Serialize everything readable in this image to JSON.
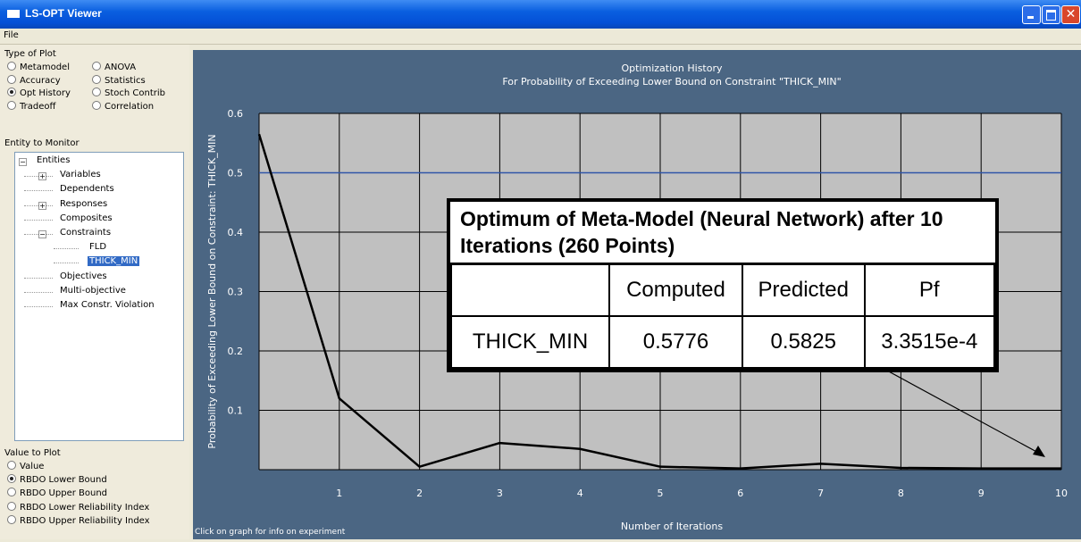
{
  "window": {
    "title": "LS-OPT Viewer"
  },
  "menu": [
    "File"
  ],
  "type_of_plot": {
    "label": "Type of Plot",
    "options": [
      "Metamodel",
      "ANOVA",
      "Accuracy",
      "Statistics",
      "Opt History",
      "Stoch Contrib",
      "Tradeoff",
      "Correlation"
    ],
    "selected": 4
  },
  "entity_to_monitor": {
    "label": "Entity to Monitor",
    "selected": 7,
    "items": [
      {
        "label": "Entities",
        "depth": 0,
        "expander": "minus"
      },
      {
        "label": "Variables",
        "depth": 1,
        "expander": "plus"
      },
      {
        "label": "Dependents",
        "depth": 1
      },
      {
        "label": "Responses",
        "depth": 1,
        "expander": "plus"
      },
      {
        "label": "Composites",
        "depth": 1
      },
      {
        "label": "Constraints",
        "depth": 1,
        "expander": "minus"
      },
      {
        "label": "FLD",
        "depth": 2
      },
      {
        "label": "THICK_MIN",
        "depth": 2
      },
      {
        "label": "Objectives",
        "depth": 1
      },
      {
        "label": "Multi-objective",
        "depth": 1
      },
      {
        "label": "Max Constr. Violation",
        "depth": 1
      }
    ]
  },
  "value_to_plot": {
    "label": "Value to Plot",
    "options": [
      "Value",
      "RBDO Lower Bound",
      "RBDO Upper Bound",
      "RBDO Lower Reliability Index",
      "RBDO Upper Reliability Index"
    ],
    "selected": 1
  },
  "status": "Click on graph for info on experiment",
  "chart_data": {
    "type": "line",
    "title": "Optimization History",
    "subtitle": "For Probability of Exceeding Lower Bound on Constraint \"THICK_MIN\"",
    "x_label": "Number of Iterations",
    "y_label": "Probability of Exceeding Lower Bound on Constraint: THICK_MIN",
    "x": [
      0,
      1,
      2,
      3,
      4,
      5,
      6,
      7,
      8,
      9,
      10
    ],
    "values": [
      0.565,
      0.12,
      0.005,
      0.045,
      0.035,
      0.005,
      0.002,
      0.01,
      0.003,
      0.002,
      0.002
    ],
    "color": "#000000",
    "reference_line": {
      "value": 0.5,
      "color": "#2f55a8"
    },
    "xlim": [
      0,
      10
    ],
    "xticks": [
      1,
      2,
      3,
      4,
      5,
      6,
      7,
      8,
      9,
      10
    ],
    "ylim": [
      0,
      0.6
    ],
    "yticks": [
      0.1,
      0.2,
      0.3,
      0.4,
      0.5,
      0.6
    ],
    "grid": true,
    "annotation": {
      "title": "Optimum of Meta-Model (Neural Network) after 10 Iterations (260 Points)",
      "headers": [
        "Computed",
        "Predicted",
        "Pf"
      ],
      "row": [
        "THICK_MIN",
        "0.5776",
        "0.5825",
        "3.3515e-4"
      ]
    }
  }
}
